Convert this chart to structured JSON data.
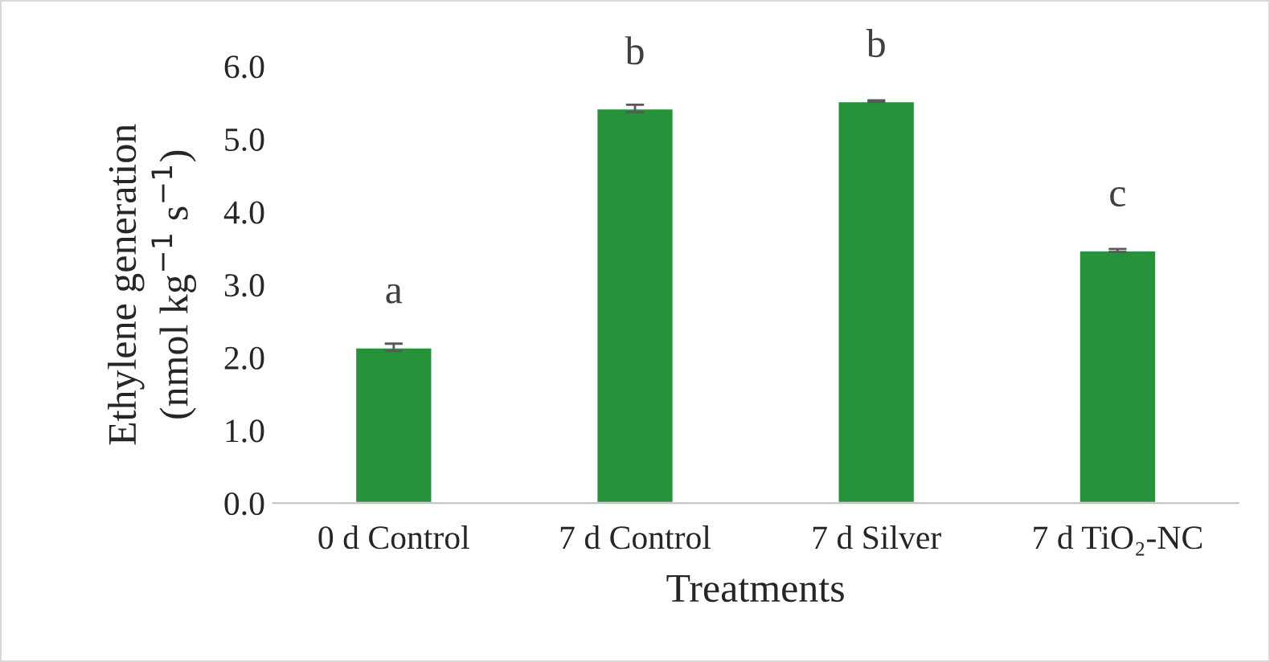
{
  "chart_data": {
    "type": "bar",
    "xlabel": "Treatments",
    "ylabel": "Ethylene generation\n(nmol kg$^{−1}$ s$^{−1}$)",
    "categories": [
      "0 d Control",
      "7 d Control",
      "7 d Silver",
      "7 d TiO₂-NC"
    ],
    "values": [
      2.14,
      5.42,
      5.52,
      3.47
    ],
    "errors": [
      0.05,
      0.05,
      0.01,
      0.02
    ],
    "color": "#26923a",
    "ylim": [
      0,
      6
    ],
    "yticks": [
      {
        "value": 0,
        "label": "0.0"
      },
      {
        "value": 1,
        "label": "1.0"
      },
      {
        "value": 2,
        "label": "2.0"
      },
      {
        "value": 3,
        "label": "3.0"
      },
      {
        "value": 4,
        "label": "4.0"
      },
      {
        "value": 5,
        "label": "5.0"
      },
      {
        "value": 6,
        "label": "6.0"
      }
    ],
    "grid": false,
    "annotations": [
      {
        "text": "a",
        "x": "0 d Control",
        "y": 2.14
      },
      {
        "text": "b",
        "x": "7 d Control",
        "y": 5.42
      },
      {
        "text": "b",
        "x": "7 d Silver",
        "y": 5.52
      },
      {
        "text": "c",
        "x": "7 d TiO₂-NC",
        "y": 3.47
      }
    ]
  }
}
